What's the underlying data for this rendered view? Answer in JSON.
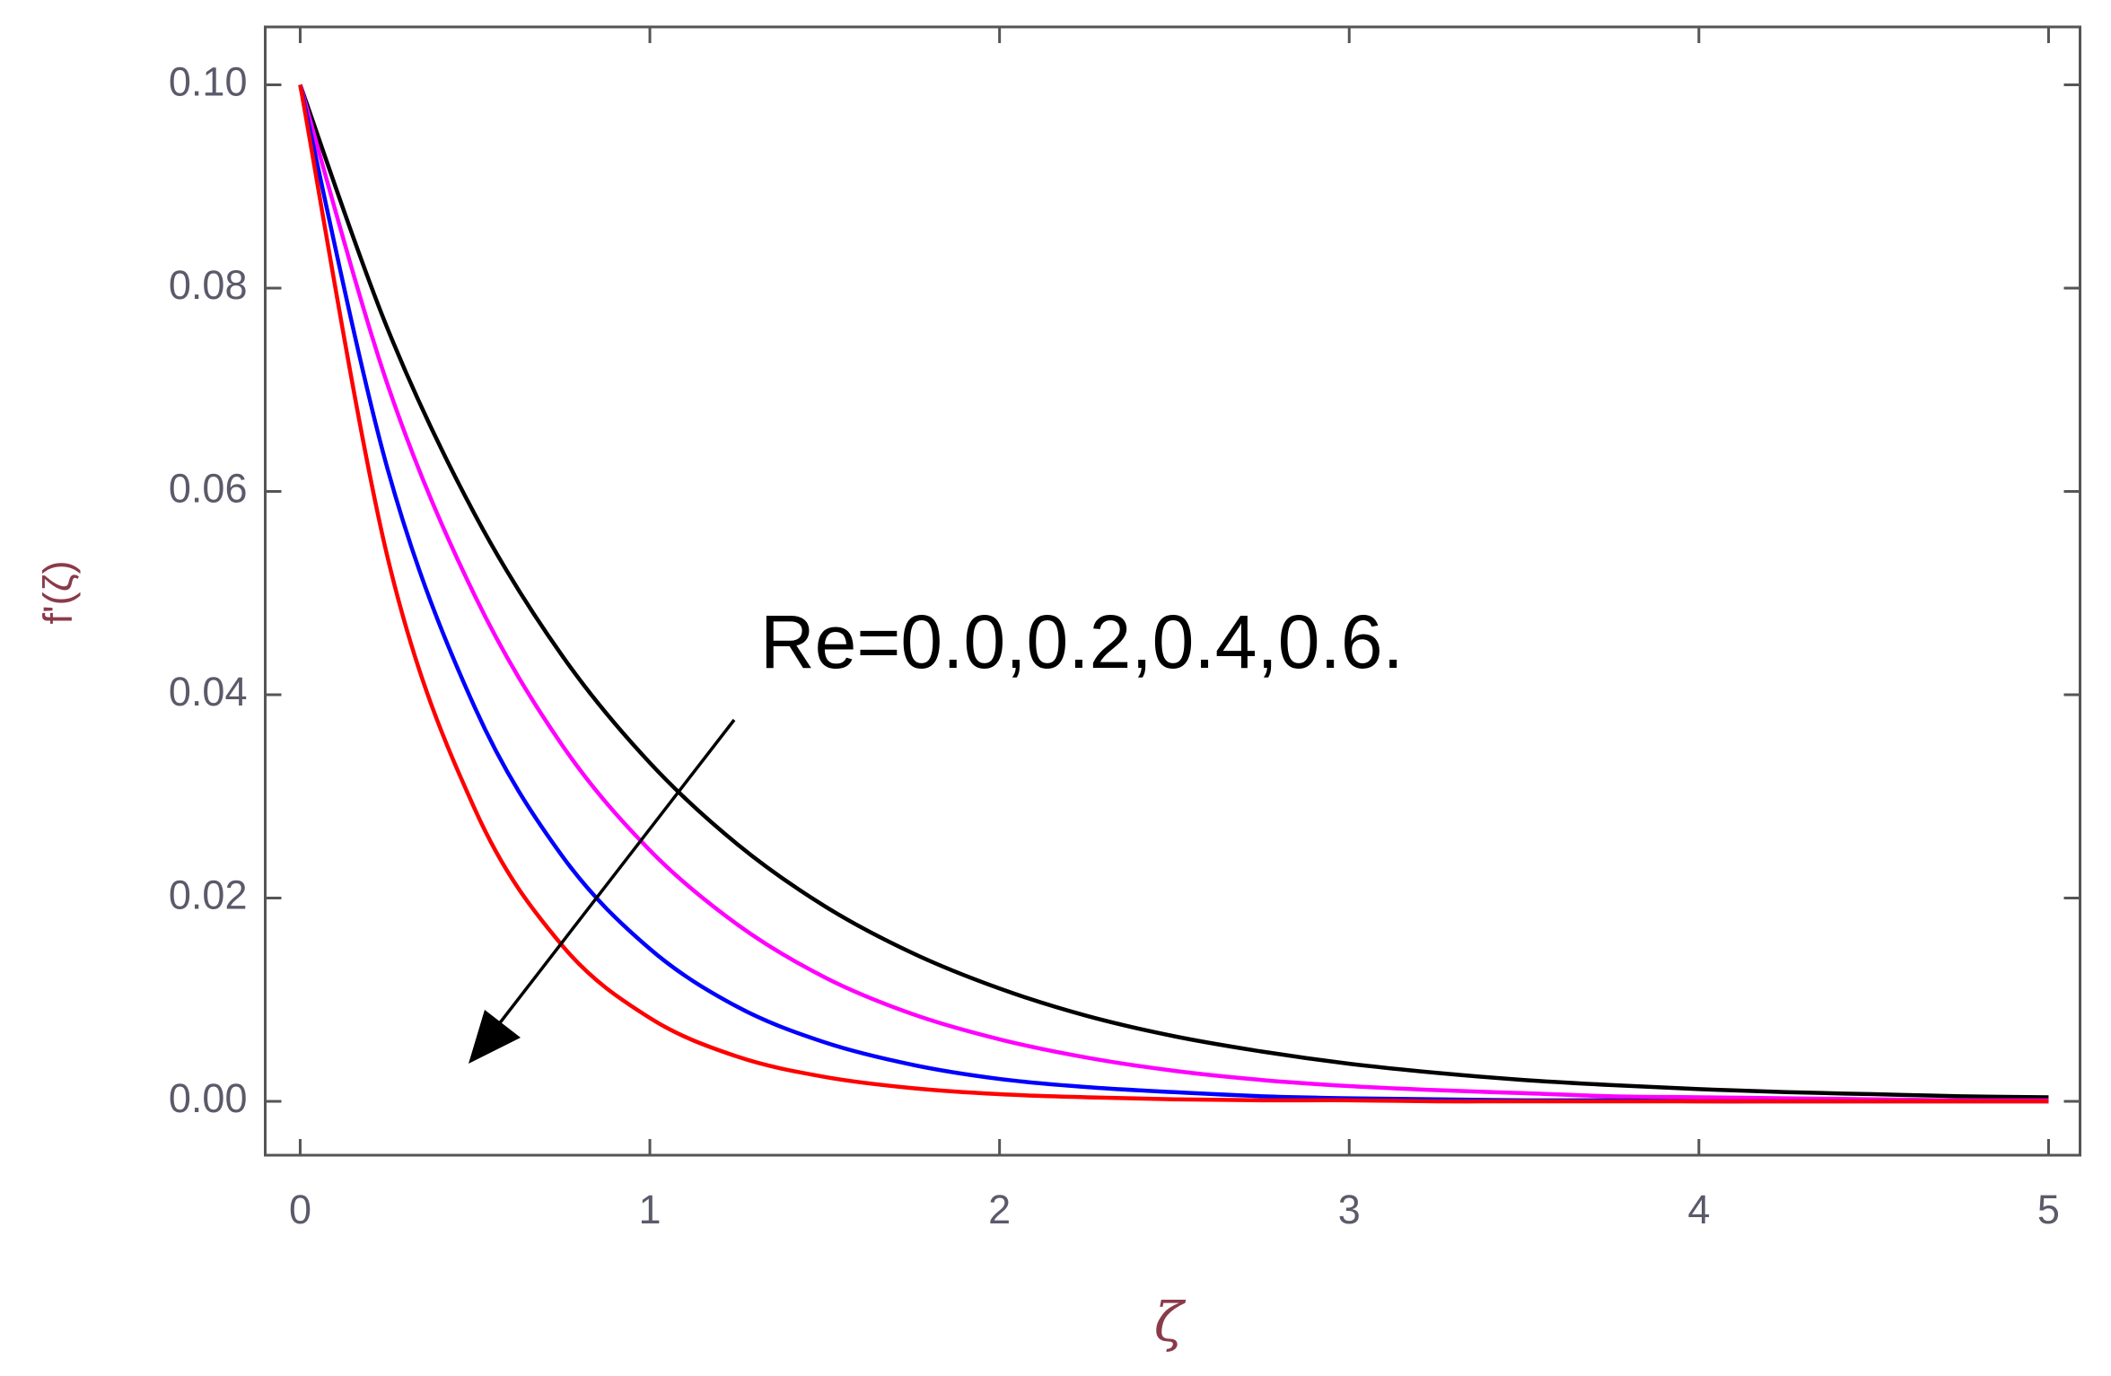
{
  "chart_data": {
    "type": "line",
    "x_label": "ζ",
    "y_label": "f'(ζ)",
    "annotation": "Re=0.0,0.2,0.4,0.6.",
    "x": [
      0,
      0.25,
      0.5,
      0.75,
      1,
      1.25,
      1.5,
      1.75,
      2,
      2.25,
      2.5,
      2.75,
      3,
      3.25,
      3.5,
      3.75,
      4,
      4.25,
      4.5,
      4.75,
      5
    ],
    "series": [
      {
        "color": "#000000",
        "values": [
          0.1,
          0.076,
          0.0577,
          0.0438,
          0.0333,
          0.0253,
          0.0192,
          0.0146,
          0.0111,
          0.0084,
          0.0064,
          0.0049,
          0.0037,
          0.0028,
          0.0021,
          0.0016,
          0.0012,
          0.0009,
          0.0007,
          0.0005,
          0.0004
        ]
      },
      {
        "color": "#ff00ff",
        "values": [
          0.1,
          0.0705,
          0.0497,
          0.035,
          0.0247,
          0.0174,
          0.0122,
          0.0086,
          0.0061,
          0.0043,
          0.003,
          0.0021,
          0.0015,
          0.0011,
          0.0008,
          0.0005,
          0.0004,
          0.0003,
          0.0002,
          0.0001,
          0.0001
        ]
      },
      {
        "color": "#0000ff",
        "values": [
          0.1,
          0.0622,
          0.0387,
          0.0241,
          0.015,
          0.0093,
          0.0058,
          0.0036,
          0.0022,
          0.0014,
          0.0009,
          0.0005,
          0.0003,
          0.0002,
          0.0001,
          0.0001,
          0,
          0,
          0,
          0,
          0
        ]
      },
      {
        "color": "#ff0000",
        "values": [
          0.1,
          0.0535,
          0.0287,
          0.0153,
          0.0082,
          0.0044,
          0.0024,
          0.0013,
          0.0007,
          0.0004,
          0.0002,
          0.0001,
          0.0001,
          0,
          0,
          0,
          0,
          0,
          0,
          0,
          0
        ]
      }
    ],
    "xlim": [
      -0.1,
      5.09
    ],
    "ylim": [
      -0.0053,
      0.1057
    ],
    "xticks": [
      0,
      1,
      2,
      3,
      4,
      5
    ],
    "yticks": [
      {
        "value": 0,
        "label": "0.00"
      },
      {
        "value": 0.02,
        "label": "0.02"
      },
      {
        "value": 0.04,
        "label": "0.04"
      },
      {
        "value": 0.06,
        "label": "0.06"
      },
      {
        "value": 0.08,
        "label": "0.08"
      },
      {
        "value": 0.1,
        "label": "0.10"
      }
    ]
  }
}
